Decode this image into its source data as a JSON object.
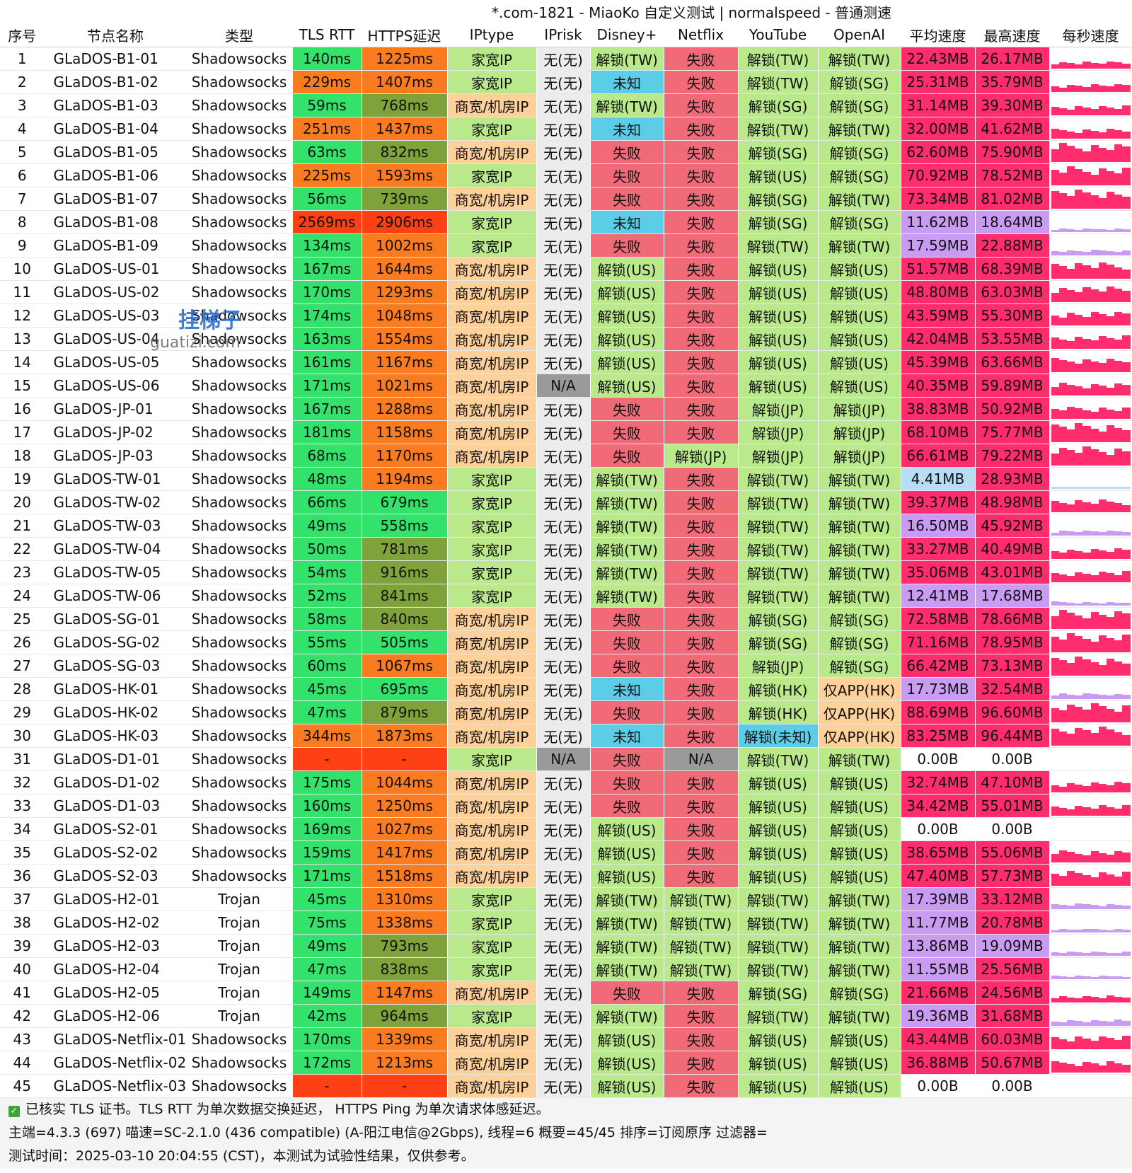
{
  "title": "*.com-1821 - MiaoKo 自定义测试 | normalspeed - 普通测速",
  "columns": [
    "序号",
    "节点名称",
    "类型",
    "TLS RTT",
    "HTTPS延迟",
    "IPtype",
    "IPrisk",
    "Disney+",
    "Netflix",
    "YouTube",
    "OpenAI",
    "平均速度",
    "最高速度",
    "每秒速度"
  ],
  "colors": {
    "green": "#32e26a",
    "olive": "#7fa33a",
    "orange": "#fb7b20",
    "red": "#ff3f14",
    "home": "#b9e98b",
    "biz": "#ffd19a",
    "neutral": "#ececec",
    "na": "#9a9a9a",
    "unlock": "#b9e98b",
    "fail": "#f06a78",
    "unknown": "#5ccde6",
    "app": "#ffd19a",
    "pink": "#ff2d6d",
    "purple": "#c99bf3",
    "lightblue": "#b7ddf6",
    "white": "#ffffff"
  },
  "watermark": {
    "text": "挂梯子",
    "subtext": "guatizi.com"
  },
  "rows": [
    [
      "1",
      "GLaDOS-B1-01",
      "Shadowsocks",
      "140ms",
      "1225ms",
      "家宽IP",
      "无(无)",
      "解锁(TW)",
      "失败",
      "解锁(TW)",
      "解锁(TW)",
      "22.43MB",
      "26.17MB"
    ],
    [
      "2",
      "GLaDOS-B1-02",
      "Shadowsocks",
      "229ms",
      "1407ms",
      "家宽IP",
      "无(无)",
      "未知",
      "失败",
      "解锁(TW)",
      "解锁(SG)",
      "25.31MB",
      "35.79MB"
    ],
    [
      "3",
      "GLaDOS-B1-03",
      "Shadowsocks",
      "59ms",
      "768ms",
      "商宽/机房IP",
      "无(无)",
      "解锁(TW)",
      "失败",
      "解锁(SG)",
      "解锁(SG)",
      "31.14MB",
      "39.30MB"
    ],
    [
      "4",
      "GLaDOS-B1-04",
      "Shadowsocks",
      "251ms",
      "1437ms",
      "家宽IP",
      "无(无)",
      "未知",
      "失败",
      "解锁(TW)",
      "解锁(TW)",
      "32.00MB",
      "41.62MB"
    ],
    [
      "5",
      "GLaDOS-B1-05",
      "Shadowsocks",
      "63ms",
      "832ms",
      "商宽/机房IP",
      "无(无)",
      "失败",
      "失败",
      "解锁(SG)",
      "解锁(SG)",
      "62.60MB",
      "75.90MB"
    ],
    [
      "6",
      "GLaDOS-B1-06",
      "Shadowsocks",
      "225ms",
      "1593ms",
      "家宽IP",
      "无(无)",
      "失败",
      "失败",
      "解锁(US)",
      "解锁(SG)",
      "70.92MB",
      "78.52MB"
    ],
    [
      "7",
      "GLaDOS-B1-07",
      "Shadowsocks",
      "56ms",
      "739ms",
      "商宽/机房IP",
      "无(无)",
      "失败",
      "失败",
      "解锁(SG)",
      "解锁(TW)",
      "73.34MB",
      "81.02MB"
    ],
    [
      "8",
      "GLaDOS-B1-08",
      "Shadowsocks",
      "2569ms",
      "2906ms",
      "家宽IP",
      "无(无)",
      "未知",
      "失败",
      "解锁(SG)",
      "解锁(SG)",
      "11.62MB",
      "18.64MB"
    ],
    [
      "9",
      "GLaDOS-B1-09",
      "Shadowsocks",
      "134ms",
      "1002ms",
      "家宽IP",
      "无(无)",
      "失败",
      "失败",
      "解锁(TW)",
      "解锁(TW)",
      "17.59MB",
      "22.88MB"
    ],
    [
      "10",
      "GLaDOS-US-01",
      "Shadowsocks",
      "167ms",
      "1644ms",
      "商宽/机房IP",
      "无(无)",
      "解锁(US)",
      "失败",
      "解锁(US)",
      "解锁(US)",
      "51.57MB",
      "68.39MB"
    ],
    [
      "11",
      "GLaDOS-US-02",
      "Shadowsocks",
      "170ms",
      "1293ms",
      "商宽/机房IP",
      "无(无)",
      "解锁(US)",
      "失败",
      "解锁(US)",
      "解锁(US)",
      "48.80MB",
      "63.03MB"
    ],
    [
      "12",
      "GLaDOS-US-03",
      "Shadowsocks",
      "174ms",
      "1048ms",
      "商宽/机房IP",
      "无(无)",
      "解锁(US)",
      "失败",
      "解锁(US)",
      "解锁(US)",
      "43.59MB",
      "55.30MB"
    ],
    [
      "13",
      "GLaDOS-US-04",
      "Shadowsocks",
      "163ms",
      "1554ms",
      "商宽/机房IP",
      "无(无)",
      "解锁(US)",
      "失败",
      "解锁(US)",
      "解锁(US)",
      "42.04MB",
      "53.55MB"
    ],
    [
      "14",
      "GLaDOS-US-05",
      "Shadowsocks",
      "161ms",
      "1167ms",
      "商宽/机房IP",
      "无(无)",
      "解锁(US)",
      "失败",
      "解锁(US)",
      "解锁(US)",
      "45.39MB",
      "63.66MB"
    ],
    [
      "15",
      "GLaDOS-US-06",
      "Shadowsocks",
      "171ms",
      "1021ms",
      "商宽/机房IP",
      "N/A",
      "解锁(US)",
      "失败",
      "解锁(US)",
      "解锁(US)",
      "40.35MB",
      "59.89MB"
    ],
    [
      "16",
      "GLaDOS-JP-01",
      "Shadowsocks",
      "167ms",
      "1288ms",
      "商宽/机房IP",
      "无(无)",
      "失败",
      "失败",
      "解锁(JP)",
      "解锁(JP)",
      "38.83MB",
      "50.92MB"
    ],
    [
      "17",
      "GLaDOS-JP-02",
      "Shadowsocks",
      "181ms",
      "1158ms",
      "商宽/机房IP",
      "无(无)",
      "失败",
      "失败",
      "解锁(JP)",
      "解锁(JP)",
      "68.10MB",
      "75.77MB"
    ],
    [
      "18",
      "GLaDOS-JP-03",
      "Shadowsocks",
      "68ms",
      "1170ms",
      "商宽/机房IP",
      "无(无)",
      "失败",
      "解锁(JP)",
      "解锁(JP)",
      "解锁(JP)",
      "66.61MB",
      "79.22MB"
    ],
    [
      "19",
      "GLaDOS-TW-01",
      "Shadowsocks",
      "48ms",
      "1194ms",
      "家宽IP",
      "无(无)",
      "解锁(TW)",
      "失败",
      "解锁(TW)",
      "解锁(TW)",
      "4.41MB",
      "28.93MB"
    ],
    [
      "20",
      "GLaDOS-TW-02",
      "Shadowsocks",
      "66ms",
      "679ms",
      "家宽IP",
      "无(无)",
      "解锁(TW)",
      "失败",
      "解锁(TW)",
      "解锁(TW)",
      "39.37MB",
      "48.98MB"
    ],
    [
      "21",
      "GLaDOS-TW-03",
      "Shadowsocks",
      "49ms",
      "558ms",
      "家宽IP",
      "无(无)",
      "解锁(TW)",
      "失败",
      "解锁(TW)",
      "解锁(TW)",
      "16.50MB",
      "45.92MB"
    ],
    [
      "22",
      "GLaDOS-TW-04",
      "Shadowsocks",
      "50ms",
      "781ms",
      "家宽IP",
      "无(无)",
      "解锁(TW)",
      "失败",
      "解锁(TW)",
      "解锁(TW)",
      "33.27MB",
      "40.49MB"
    ],
    [
      "23",
      "GLaDOS-TW-05",
      "Shadowsocks",
      "54ms",
      "916ms",
      "家宽IP",
      "无(无)",
      "解锁(TW)",
      "失败",
      "解锁(TW)",
      "解锁(TW)",
      "35.06MB",
      "43.01MB"
    ],
    [
      "24",
      "GLaDOS-TW-06",
      "Shadowsocks",
      "52ms",
      "841ms",
      "家宽IP",
      "无(无)",
      "解锁(TW)",
      "失败",
      "解锁(TW)",
      "解锁(TW)",
      "12.41MB",
      "17.68MB"
    ],
    [
      "25",
      "GLaDOS-SG-01",
      "Shadowsocks",
      "58ms",
      "840ms",
      "商宽/机房IP",
      "无(无)",
      "失败",
      "失败",
      "解锁(SG)",
      "解锁(SG)",
      "72.58MB",
      "78.66MB"
    ],
    [
      "26",
      "GLaDOS-SG-02",
      "Shadowsocks",
      "55ms",
      "505ms",
      "商宽/机房IP",
      "无(无)",
      "失败",
      "失败",
      "解锁(SG)",
      "解锁(SG)",
      "71.16MB",
      "78.95MB"
    ],
    [
      "27",
      "GLaDOS-SG-03",
      "Shadowsocks",
      "60ms",
      "1067ms",
      "商宽/机房IP",
      "无(无)",
      "失败",
      "失败",
      "解锁(JP)",
      "解锁(SG)",
      "66.42MB",
      "73.13MB"
    ],
    [
      "28",
      "GLaDOS-HK-01",
      "Shadowsocks",
      "45ms",
      "695ms",
      "商宽/机房IP",
      "无(无)",
      "未知",
      "失败",
      "解锁(HK)",
      "仅APP(HK)",
      "17.73MB",
      "32.54MB"
    ],
    [
      "29",
      "GLaDOS-HK-02",
      "Shadowsocks",
      "47ms",
      "879ms",
      "商宽/机房IP",
      "无(无)",
      "失败",
      "失败",
      "解锁(HK)",
      "仅APP(HK)",
      "88.69MB",
      "96.60MB"
    ],
    [
      "30",
      "GLaDOS-HK-03",
      "Shadowsocks",
      "344ms",
      "1873ms",
      "商宽/机房IP",
      "无(无)",
      "未知",
      "失败",
      "解锁(未知)",
      "仅APP(HK)",
      "83.25MB",
      "96.44MB"
    ],
    [
      "31",
      "GLaDOS-D1-01",
      "Shadowsocks",
      "-",
      "-",
      "家宽IP",
      "N/A",
      "失败",
      "N/A",
      "解锁(TW)",
      "解锁(TW)",
      "0.00B",
      "0.00B"
    ],
    [
      "32",
      "GLaDOS-D1-02",
      "Shadowsocks",
      "175ms",
      "1044ms",
      "商宽/机房IP",
      "无(无)",
      "失败",
      "失败",
      "解锁(US)",
      "解锁(US)",
      "32.74MB",
      "47.10MB"
    ],
    [
      "33",
      "GLaDOS-D1-03",
      "Shadowsocks",
      "160ms",
      "1250ms",
      "商宽/机房IP",
      "无(无)",
      "失败",
      "失败",
      "解锁(US)",
      "解锁(US)",
      "34.42MB",
      "55.01MB"
    ],
    [
      "34",
      "GLaDOS-S2-01",
      "Shadowsocks",
      "169ms",
      "1027ms",
      "商宽/机房IP",
      "无(无)",
      "解锁(US)",
      "失败",
      "解锁(US)",
      "解锁(US)",
      "0.00B",
      "0.00B"
    ],
    [
      "35",
      "GLaDOS-S2-02",
      "Shadowsocks",
      "159ms",
      "1417ms",
      "商宽/机房IP",
      "无(无)",
      "解锁(US)",
      "失败",
      "解锁(US)",
      "解锁(US)",
      "38.65MB",
      "55.06MB"
    ],
    [
      "36",
      "GLaDOS-S2-03",
      "Shadowsocks",
      "171ms",
      "1518ms",
      "商宽/机房IP",
      "无(无)",
      "解锁(US)",
      "失败",
      "解锁(US)",
      "解锁(US)",
      "47.40MB",
      "57.73MB"
    ],
    [
      "37",
      "GLaDOS-H2-01",
      "Trojan",
      "45ms",
      "1310ms",
      "家宽IP",
      "无(无)",
      "解锁(TW)",
      "解锁(TW)",
      "解锁(TW)",
      "解锁(TW)",
      "17.39MB",
      "33.12MB"
    ],
    [
      "38",
      "GLaDOS-H2-02",
      "Trojan",
      "75ms",
      "1338ms",
      "家宽IP",
      "无(无)",
      "解锁(TW)",
      "解锁(TW)",
      "解锁(TW)",
      "解锁(TW)",
      "11.77MB",
      "20.78MB"
    ],
    [
      "39",
      "GLaDOS-H2-03",
      "Trojan",
      "49ms",
      "793ms",
      "家宽IP",
      "无(无)",
      "解锁(TW)",
      "解锁(TW)",
      "解锁(TW)",
      "解锁(TW)",
      "13.86MB",
      "19.09MB"
    ],
    [
      "40",
      "GLaDOS-H2-04",
      "Trojan",
      "47ms",
      "838ms",
      "家宽IP",
      "无(无)",
      "解锁(TW)",
      "解锁(TW)",
      "解锁(TW)",
      "解锁(TW)",
      "11.55MB",
      "25.56MB"
    ],
    [
      "41",
      "GLaDOS-H2-05",
      "Trojan",
      "149ms",
      "1147ms",
      "商宽/机房IP",
      "无(无)",
      "失败",
      "失败",
      "解锁(SG)",
      "解锁(SG)",
      "21.66MB",
      "24.56MB"
    ],
    [
      "42",
      "GLaDOS-H2-06",
      "Trojan",
      "42ms",
      "964ms",
      "家宽IP",
      "无(无)",
      "解锁(TW)",
      "失败",
      "解锁(TW)",
      "解锁(TW)",
      "19.36MB",
      "31.68MB"
    ],
    [
      "43",
      "GLaDOS-Netflix-01",
      "Shadowsocks",
      "170ms",
      "1339ms",
      "商宽/机房IP",
      "无(无)",
      "解锁(US)",
      "失败",
      "解锁(US)",
      "解锁(US)",
      "43.44MB",
      "60.03MB"
    ],
    [
      "44",
      "GLaDOS-Netflix-02",
      "Shadowsocks",
      "172ms",
      "1213ms",
      "商宽/机房IP",
      "无(无)",
      "解锁(US)",
      "失败",
      "解锁(US)",
      "解锁(US)",
      "36.88MB",
      "50.67MB"
    ],
    [
      "45",
      "GLaDOS-Netflix-03",
      "Shadowsocks",
      "-",
      "-",
      "商宽/机房IP",
      "无(无)",
      "解锁(US)",
      "失败",
      "解锁(US)",
      "解锁(US)",
      "0.00B",
      "0.00B"
    ]
  ],
  "footer": {
    "line1": "已核实 TLS 证书。TLS RTT 为单次数据交换延迟， HTTPS Ping 为单次请求体感延迟。",
    "line2": "主端=4.3.3 (697) 喵速=SC-2.1.0 (436 compatible) (A-阳江电信@2Gbps), 线程=6 概要=45/45 排序=订阅原序 过滤器=",
    "line3": "测试时间：2025-03-10 20:04:55 (CST)，本测试为试验性结果，仅供参考。"
  }
}
